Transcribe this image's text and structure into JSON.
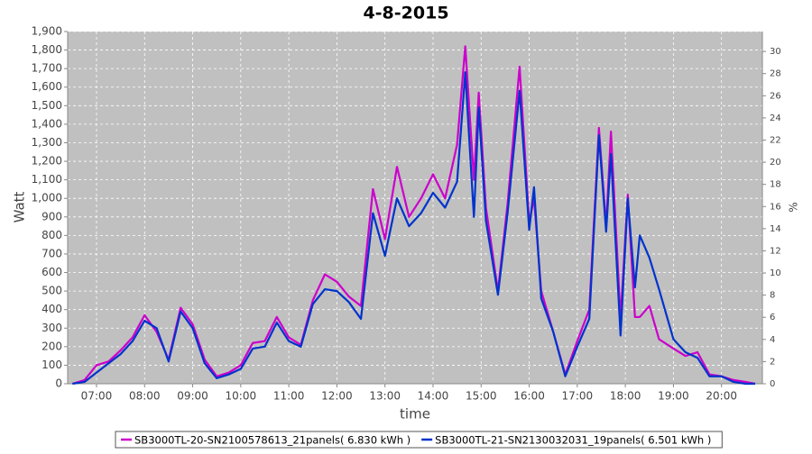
{
  "chart_data": {
    "type": "line",
    "title": "4-8-2015",
    "xlabel": "time",
    "ylabel": "Watt",
    "y2label": "%",
    "x": [
      6.5,
      6.75,
      7.0,
      7.25,
      7.5,
      7.75,
      8.0,
      8.25,
      8.5,
      8.75,
      9.0,
      9.25,
      9.5,
      9.75,
      10.0,
      10.25,
      10.5,
      10.75,
      11.0,
      11.25,
      11.5,
      11.75,
      12.0,
      12.25,
      12.5,
      12.75,
      13.0,
      13.25,
      13.5,
      13.75,
      14.0,
      14.25,
      14.5,
      14.67,
      14.85,
      14.95,
      15.1,
      15.35,
      15.55,
      15.8,
      16.0,
      16.1,
      16.25,
      16.5,
      16.75,
      17.0,
      17.25,
      17.45,
      17.6,
      17.7,
      17.9,
      18.05,
      18.2,
      18.3,
      18.5,
      18.7,
      19.0,
      19.25,
      19.5,
      19.75,
      20.0,
      20.25,
      20.5,
      20.7
    ],
    "series": [
      {
        "name": "SB3000TL-20-SN2100578613_21panels( 6.830 kWh )",
        "color": "#cc00cc",
        "values": [
          0,
          20,
          100,
          120,
          180,
          250,
          370,
          280,
          130,
          410,
          320,
          130,
          40,
          60,
          100,
          220,
          230,
          360,
          250,
          210,
          450,
          590,
          550,
          470,
          420,
          1050,
          780,
          1170,
          900,
          1000,
          1130,
          1000,
          1290,
          1820,
          1100,
          1570,
          950,
          500,
          970,
          1710,
          870,
          1000,
          500,
          280,
          50,
          230,
          400,
          1380,
          850,
          1360,
          350,
          1020,
          360,
          360,
          420,
          240,
          190,
          150,
          170,
          50,
          40,
          20,
          10,
          0
        ]
      },
      {
        "name": "SB3000TL-21-SN2130032031_19panels( 6.501 kWh )",
        "color": "#0033cc",
        "values": [
          0,
          10,
          60,
          110,
          160,
          230,
          340,
          300,
          120,
          390,
          300,
          110,
          30,
          50,
          80,
          190,
          200,
          330,
          230,
          200,
          430,
          510,
          500,
          440,
          350,
          920,
          690,
          1000,
          850,
          920,
          1030,
          950,
          1090,
          1680,
          900,
          1490,
          880,
          480,
          920,
          1580,
          830,
          1060,
          460,
          280,
          40,
          200,
          350,
          1340,
          820,
          1240,
          260,
          1000,
          520,
          800,
          680,
          510,
          240,
          170,
          140,
          40,
          40,
          10,
          0,
          0
        ]
      }
    ],
    "xlim": [
      6.4,
      20.85
    ],
    "xticks": [
      {
        "value": 7,
        "label": "07:00"
      },
      {
        "value": 8,
        "label": "08:00"
      },
      {
        "value": 9,
        "label": "09:00"
      },
      {
        "value": 10,
        "label": "10:00"
      },
      {
        "value": 11,
        "label": "11:00"
      },
      {
        "value": 12,
        "label": "12:00"
      },
      {
        "value": 13,
        "label": "13:00"
      },
      {
        "value": 14,
        "label": "14:00"
      },
      {
        "value": 15,
        "label": "15:00"
      },
      {
        "value": 16,
        "label": "16:00"
      },
      {
        "value": 17,
        "label": "17:00"
      },
      {
        "value": 18,
        "label": "18:00"
      },
      {
        "value": 19,
        "label": "19:00"
      },
      {
        "value": 20,
        "label": "20:00"
      }
    ],
    "ylim": [
      0,
      1900
    ],
    "yticks": [
      0,
      100,
      200,
      300,
      400,
      500,
      600,
      700,
      800,
      900,
      {
        "value": 1000,
        "label": "1,000"
      },
      {
        "value": 1100,
        "label": "1,100"
      },
      {
        "value": 1200,
        "label": "1,200"
      },
      {
        "value": 1300,
        "label": "1,300"
      },
      {
        "value": 1400,
        "label": "1,400"
      },
      {
        "value": 1500,
        "label": "1,500"
      },
      {
        "value": 1600,
        "label": "1,600"
      },
      {
        "value": 1700,
        "label": "1,700"
      },
      {
        "value": 1800,
        "label": "1,800"
      },
      {
        "value": 1900,
        "label": "1,900"
      }
    ],
    "y2lim": [
      0,
      31.8
    ],
    "y2ticks": [
      0,
      2,
      4,
      6,
      8,
      10,
      12,
      14,
      16,
      18,
      20,
      22,
      24,
      26,
      28,
      30
    ],
    "grid": true,
    "legend": "bottom"
  }
}
